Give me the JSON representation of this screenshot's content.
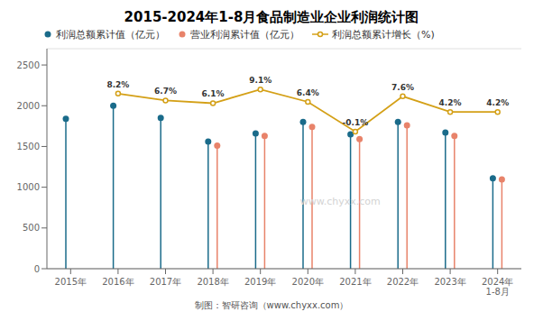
{
  "chart_data": {
    "type": "bar",
    "title": "2015-2024年1-8月食品制造业企业利润统计图",
    "categories": [
      "2015年",
      "2016年",
      "2017年",
      "2018年",
      "2019年",
      "2020年",
      "2021年",
      "2022年",
      "2023年",
      "2024年\n1-8月"
    ],
    "series": [
      {
        "name": "利润总额累计值（亿元）",
        "type": "lollipop",
        "color": "#1a6b8a",
        "marker": "circle",
        "values": [
          1840,
          2000,
          1850,
          1560,
          1660,
          1800,
          1650,
          1800,
          1670,
          1110
        ]
      },
      {
        "name": "营业利润累计值（亿元）",
        "type": "lollipop",
        "color": "#e8836a",
        "marker": "circle",
        "values": [
          null,
          null,
          null,
          1510,
          1630,
          1740,
          1590,
          1760,
          1630,
          1095
        ]
      },
      {
        "name": "利润总额累计增长（%)",
        "type": "line",
        "color": "#d4a017",
        "marker": "circle",
        "axis": "y2",
        "data_labels": true,
        "values": [
          null,
          8.2,
          6.7,
          6.1,
          9.1,
          6.4,
          -0.1,
          7.6,
          4.2,
          4.2
        ],
        "value_labels": [
          null,
          "8.2%",
          "6.7%",
          "6.1%",
          "9.1%",
          "6.4%",
          "-0.1%",
          "7.6%",
          "4.2%",
          "4.2%"
        ]
      }
    ],
    "ylim": [
      0,
      2700
    ],
    "yticks": [
      0,
      500,
      1000,
      1500,
      2000,
      2500
    ],
    "y2lim": [
      -30,
      18
    ],
    "grid": true,
    "legend": "upper left",
    "annotations": [
      "www.chyxx.com",
      "制图：智研咨询（www.chyxx.com）"
    ]
  }
}
